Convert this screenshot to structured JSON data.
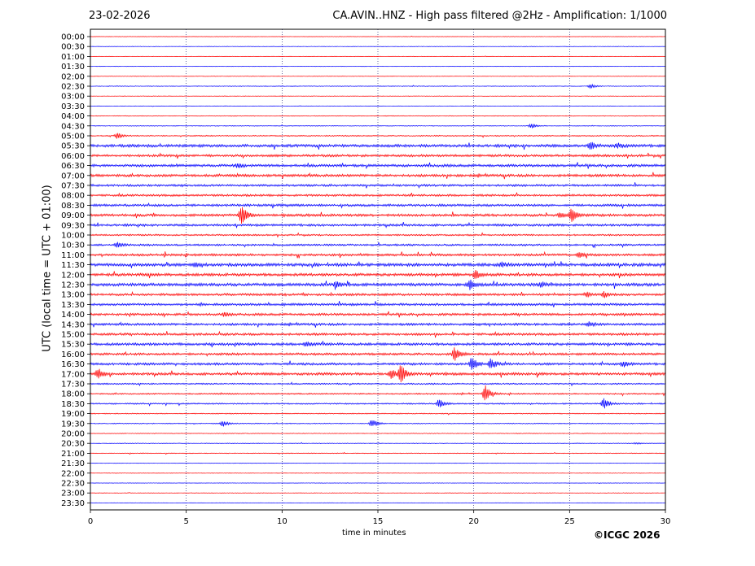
{
  "chart_data": {
    "type": "line",
    "title": "CA.AVIN..HNZ - High pass filtered @2Hz - Amplification: 1/1000",
    "date": "23-02-2026",
    "xlabel": "time in minutes",
    "ylabel": "UTC (local time = UTC + 01:00)",
    "xlim": [
      0,
      30
    ],
    "x_ticks": [
      "0",
      "5",
      "10",
      "15",
      "20",
      "25",
      "30"
    ],
    "grid": "vertical dotted at 5-minute intervals",
    "series_colors": [
      "#ff0000",
      "#0000ff"
    ],
    "rows": [
      "00:00",
      "00:30",
      "01:00",
      "01:30",
      "02:00",
      "02:30",
      "03:00",
      "03:30",
      "04:00",
      "04:30",
      "05:00",
      "05:30",
      "06:00",
      "06:30",
      "07:00",
      "07:30",
      "08:00",
      "08:30",
      "09:00",
      "09:30",
      "10:00",
      "10:30",
      "11:00",
      "11:30",
      "12:00",
      "12:30",
      "13:00",
      "13:30",
      "14:00",
      "14:30",
      "15:00",
      "15:30",
      "16:00",
      "16:30",
      "17:00",
      "17:30",
      "18:00",
      "18:30",
      "19:00",
      "19:30",
      "20:00",
      "20:30",
      "21:00",
      "21:30",
      "22:00",
      "22:30",
      "23:00",
      "23:30"
    ],
    "row_noise": [
      0.2,
      0.2,
      0.2,
      0.2,
      0.2,
      0.3,
      0.2,
      0.2,
      0.3,
      0.3,
      0.5,
      1.2,
      1.0,
      1.1,
      1.1,
      0.9,
      0.9,
      1.0,
      1.1,
      1.0,
      0.7,
      0.8,
      1.0,
      1.3,
      1.2,
      1.3,
      1.0,
      1.0,
      1.0,
      1.0,
      1.0,
      1.1,
      1.0,
      1.0,
      1.1,
      0.6,
      0.6,
      0.6,
      0.4,
      0.4,
      0.3,
      0.3,
      0.3,
      0.2,
      0.2,
      0.2,
      0.2,
      0.2
    ],
    "events": [
      {
        "row": "02:30",
        "minute": 26.1,
        "amplitude": 3
      },
      {
        "row": "04:30",
        "minute": 23.0,
        "amplitude": 4
      },
      {
        "row": "05:00",
        "minute": 1.4,
        "amplitude": 4
      },
      {
        "row": "05:30",
        "minute": 26.1,
        "amplitude": 6
      },
      {
        "row": "05:30",
        "minute": 27.5,
        "amplitude": 3
      },
      {
        "row": "06:30",
        "minute": 7.7,
        "amplitude": 3
      },
      {
        "row": "09:00",
        "minute": 7.9,
        "amplitude": 14
      },
      {
        "row": "09:00",
        "minute": 25.1,
        "amplitude": 10
      },
      {
        "row": "09:00",
        "minute": 24.5,
        "amplitude": 4
      },
      {
        "row": "10:30",
        "minute": 1.4,
        "amplitude": 4
      },
      {
        "row": "11:00",
        "minute": 25.5,
        "amplitude": 4
      },
      {
        "row": "11:30",
        "minute": 5.5,
        "amplitude": 3
      },
      {
        "row": "11:30",
        "minute": 21.5,
        "amplitude": 3
      },
      {
        "row": "12:00",
        "minute": 20.1,
        "amplitude": 5
      },
      {
        "row": "12:30",
        "minute": 12.8,
        "amplitude": 4
      },
      {
        "row": "12:30",
        "minute": 19.8,
        "amplitude": 6
      },
      {
        "row": "12:30",
        "minute": 23.5,
        "amplitude": 3
      },
      {
        "row": "13:00",
        "minute": 26.8,
        "amplitude": 4
      },
      {
        "row": "13:00",
        "minute": 25.9,
        "amplitude": 3
      },
      {
        "row": "14:00",
        "minute": 7.0,
        "amplitude": 3
      },
      {
        "row": "14:30",
        "minute": 26.0,
        "amplitude": 3
      },
      {
        "row": "15:30",
        "minute": 11.3,
        "amplitude": 3
      },
      {
        "row": "16:00",
        "minute": 19.0,
        "amplitude": 9
      },
      {
        "row": "16:30",
        "minute": 19.9,
        "amplitude": 10
      },
      {
        "row": "16:30",
        "minute": 20.9,
        "amplitude": 7
      },
      {
        "row": "16:30",
        "minute": 27.8,
        "amplitude": 4
      },
      {
        "row": "17:00",
        "minute": 0.4,
        "amplitude": 7
      },
      {
        "row": "17:00",
        "minute": 15.7,
        "amplitude": 6
      },
      {
        "row": "17:00",
        "minute": 16.2,
        "amplitude": 13
      },
      {
        "row": "18:00",
        "minute": 20.6,
        "amplitude": 11
      },
      {
        "row": "18:30",
        "minute": 18.2,
        "amplitude": 6
      },
      {
        "row": "18:30",
        "minute": 26.8,
        "amplitude": 8
      },
      {
        "row": "19:30",
        "minute": 6.9,
        "amplitude": 4
      },
      {
        "row": "19:30",
        "minute": 14.7,
        "amplitude": 6
      },
      {
        "row": "20:30",
        "minute": 28.5,
        "amplitude": 1
      }
    ]
  },
  "copyright": "©ICGC 2026"
}
